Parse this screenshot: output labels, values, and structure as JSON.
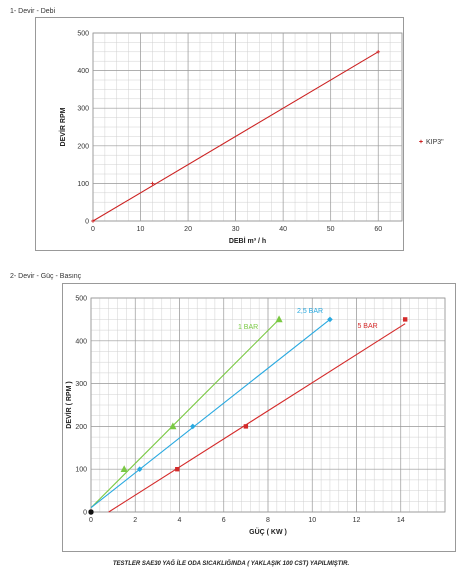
{
  "section1_title": "1- Devir - Debi",
  "section2_title": "2- Devir - Güç - Basınç",
  "footer": "TESTLER SAE30 YAĞ İLE ODA SICAKLIĞINDA ( YAKLAŞIK 100 CST) YAPILMIŞTIR.",
  "chart_data": [
    {
      "type": "line",
      "xlabel": "DEBİ m³ / h",
      "ylabel": "DEVİR RPM",
      "xlim": [
        0,
        65
      ],
      "ylim": [
        0,
        500
      ],
      "xticks": [
        "0",
        "10",
        "20",
        "30",
        "40",
        "50",
        "60"
      ],
      "yticks": [
        "0",
        "100",
        "200",
        "300",
        "400",
        "500"
      ],
      "grid": true,
      "legend_position": "right",
      "series": [
        {
          "name": "KIP3\"",
          "color": "#cc2222",
          "marker": "cross",
          "x": [
            0,
            12.5,
            60
          ],
          "y": [
            0,
            100,
            450
          ]
        }
      ]
    },
    {
      "type": "line",
      "xlabel": "GÜÇ ( KW )",
      "ylabel": "DEVİR ( RPM )",
      "xlim": [
        0,
        16
      ],
      "ylim": [
        0,
        500
      ],
      "xticks": [
        "0",
        "2",
        "4",
        "6",
        "8",
        "10",
        "12",
        "14"
      ],
      "yticks": [
        "0",
        "100",
        "200",
        "300",
        "400",
        "500"
      ],
      "grid": true,
      "series": [
        {
          "name": "1 BAR",
          "color": "#7ac943",
          "marker": "triangle",
          "x": [
            0,
            1.5,
            3.7,
            8.5
          ],
          "y": [
            0,
            100,
            200,
            450
          ],
          "line": [
            [
              0,
              10
            ],
            [
              8.5,
              450
            ]
          ]
        },
        {
          "name": "2,5 BAR",
          "color": "#29a9e0",
          "marker": "diamond",
          "x": [
            0,
            2.2,
            4.6,
            10.8
          ],
          "y": [
            0,
            100,
            200,
            450
          ],
          "line": [
            [
              0,
              10
            ],
            [
              10.8,
              450
            ]
          ]
        },
        {
          "name": "5 BAR",
          "color": "#d42a2a",
          "marker": "square",
          "x": [
            0,
            3.9,
            7,
            14.2
          ],
          "y": [
            0,
            100,
            200,
            450
          ],
          "line": [
            [
              0.8,
              0
            ],
            [
              14.2,
              440
            ]
          ]
        }
      ]
    }
  ]
}
